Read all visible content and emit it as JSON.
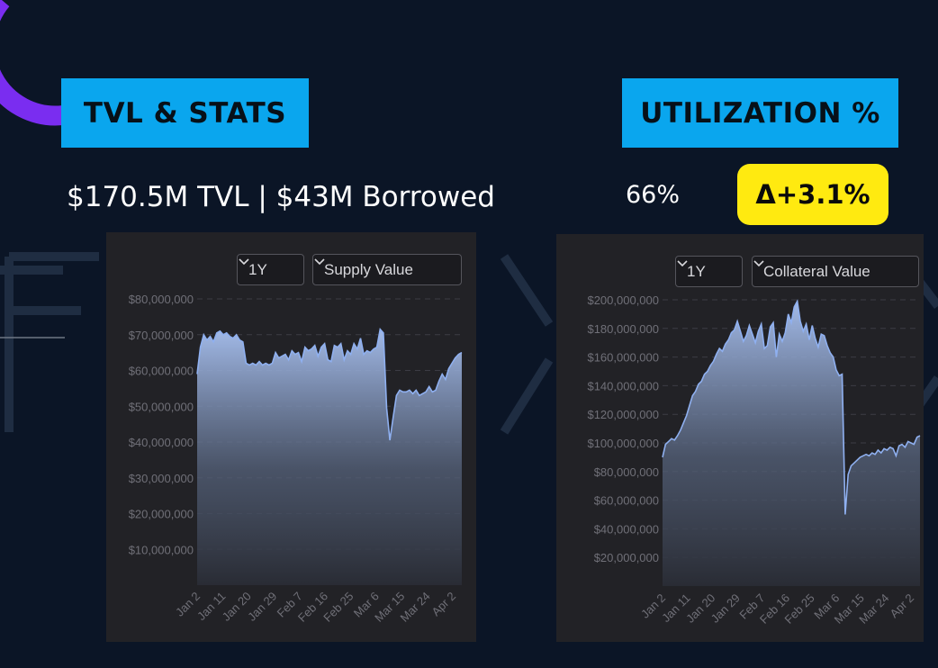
{
  "left": {
    "header": "TVL & STATS",
    "stat": "$170.5M TVL  |  $43M Borrowed",
    "range_label": "1Y",
    "metric_label": "Supply Value"
  },
  "right": {
    "header": "UTILIZATION %",
    "value": "66%",
    "delta": "Δ+3.1%",
    "range_label": "1Y",
    "metric_label": "Collateral Value"
  },
  "colors": {
    "accent": "#0aa6ee",
    "highlight": "#ffea10",
    "line": "#8fb0f0"
  },
  "chart_data": [
    {
      "type": "area",
      "ylim": [
        0,
        80000000
      ],
      "yticks": [
        10000000,
        20000000,
        30000000,
        40000000,
        50000000,
        60000000,
        70000000,
        80000000
      ],
      "ytick_labels": [
        "$10,000,000",
        "$20,000,000",
        "$30,000,000",
        "$40,000,000",
        "$50,000,000",
        "$60,000,000",
        "$70,000,000",
        "$80,000,000"
      ],
      "x_labels": [
        "Jan 2",
        "Jan 11",
        "Jan 20",
        "Jan 29",
        "Feb 7",
        "Feb 16",
        "Feb 25",
        "Mar 6",
        "Mar 15",
        "Mar 24",
        "Apr 2"
      ],
      "values": [
        59000000,
        66500000,
        70000000,
        68500000,
        69500000,
        68000000,
        70500000,
        71000000,
        70000000,
        70500000,
        69500000,
        69000000,
        70000000,
        68500000,
        68000000,
        62000000,
        61500000,
        62000000,
        61500000,
        62500000,
        61500000,
        62000000,
        61500000,
        62000000,
        65000000,
        63500000,
        64000000,
        64500000,
        63000000,
        65500000,
        64500000,
        65000000,
        62500000,
        66500000,
        65500000,
        66000000,
        67000000,
        64000000,
        66500000,
        67500000,
        63000000,
        62500000,
        67000000,
        66500000,
        67500000,
        63000000,
        65500000,
        64500000,
        67500000,
        66000000,
        69000000,
        64500000,
        65500000,
        65000000,
        66000000,
        66500000,
        71500000,
        70500000,
        49500000,
        40500000,
        47000000,
        53000000,
        54500000,
        54000000,
        54000000,
        54500000,
        53500000,
        54500000,
        53000000,
        53500000,
        54000000,
        55500000,
        54000000,
        54500000,
        57000000,
        59000000,
        57500000,
        60500000,
        62000000,
        63500000,
        64500000,
        65000000
      ]
    },
    {
      "type": "area",
      "ylim": [
        0,
        200000000
      ],
      "yticks": [
        20000000,
        40000000,
        60000000,
        80000000,
        100000000,
        120000000,
        140000000,
        160000000,
        180000000,
        200000000
      ],
      "ytick_labels": [
        "$20,000,000",
        "$40,000,000",
        "$60,000,000",
        "$80,000,000",
        "$100,000,000",
        "$120,000,000",
        "$140,000,000",
        "$160,000,000",
        "$180,000,000",
        "$200,000,000"
      ],
      "x_labels": [
        "Jan 2",
        "Jan 11",
        "Jan 20",
        "Jan 29",
        "Feb 7",
        "Feb 16",
        "Feb 25",
        "Mar 6",
        "Mar 15",
        "Mar 24",
        "Apr 2"
      ],
      "values": [
        90000000,
        99000000,
        101000000,
        103000000,
        102000000,
        105000000,
        109000000,
        114000000,
        119000000,
        126000000,
        133000000,
        136000000,
        141000000,
        143000000,
        148000000,
        150000000,
        154000000,
        157000000,
        162000000,
        166000000,
        164000000,
        169000000,
        172000000,
        177000000,
        179000000,
        185000000,
        178000000,
        171000000,
        175000000,
        182000000,
        176000000,
        170000000,
        178000000,
        183000000,
        166000000,
        168000000,
        181000000,
        184000000,
        160000000,
        176000000,
        171000000,
        177000000,
        190000000,
        184000000,
        195000000,
        199000000,
        185000000,
        178000000,
        183000000,
        172000000,
        182000000,
        173000000,
        167000000,
        176000000,
        175000000,
        168000000,
        163000000,
        160000000,
        151000000,
        147000000,
        148000000,
        50000000,
        78000000,
        84000000,
        86000000,
        88000000,
        90000000,
        91000000,
        92000000,
        91000000,
        93000000,
        92000000,
        95000000,
        93000000,
        96000000,
        95000000,
        97000000,
        96000000,
        91000000,
        98000000,
        99000000,
        97000000,
        101000000,
        100000000,
        99000000,
        104000000,
        105000000
      ]
    }
  ]
}
